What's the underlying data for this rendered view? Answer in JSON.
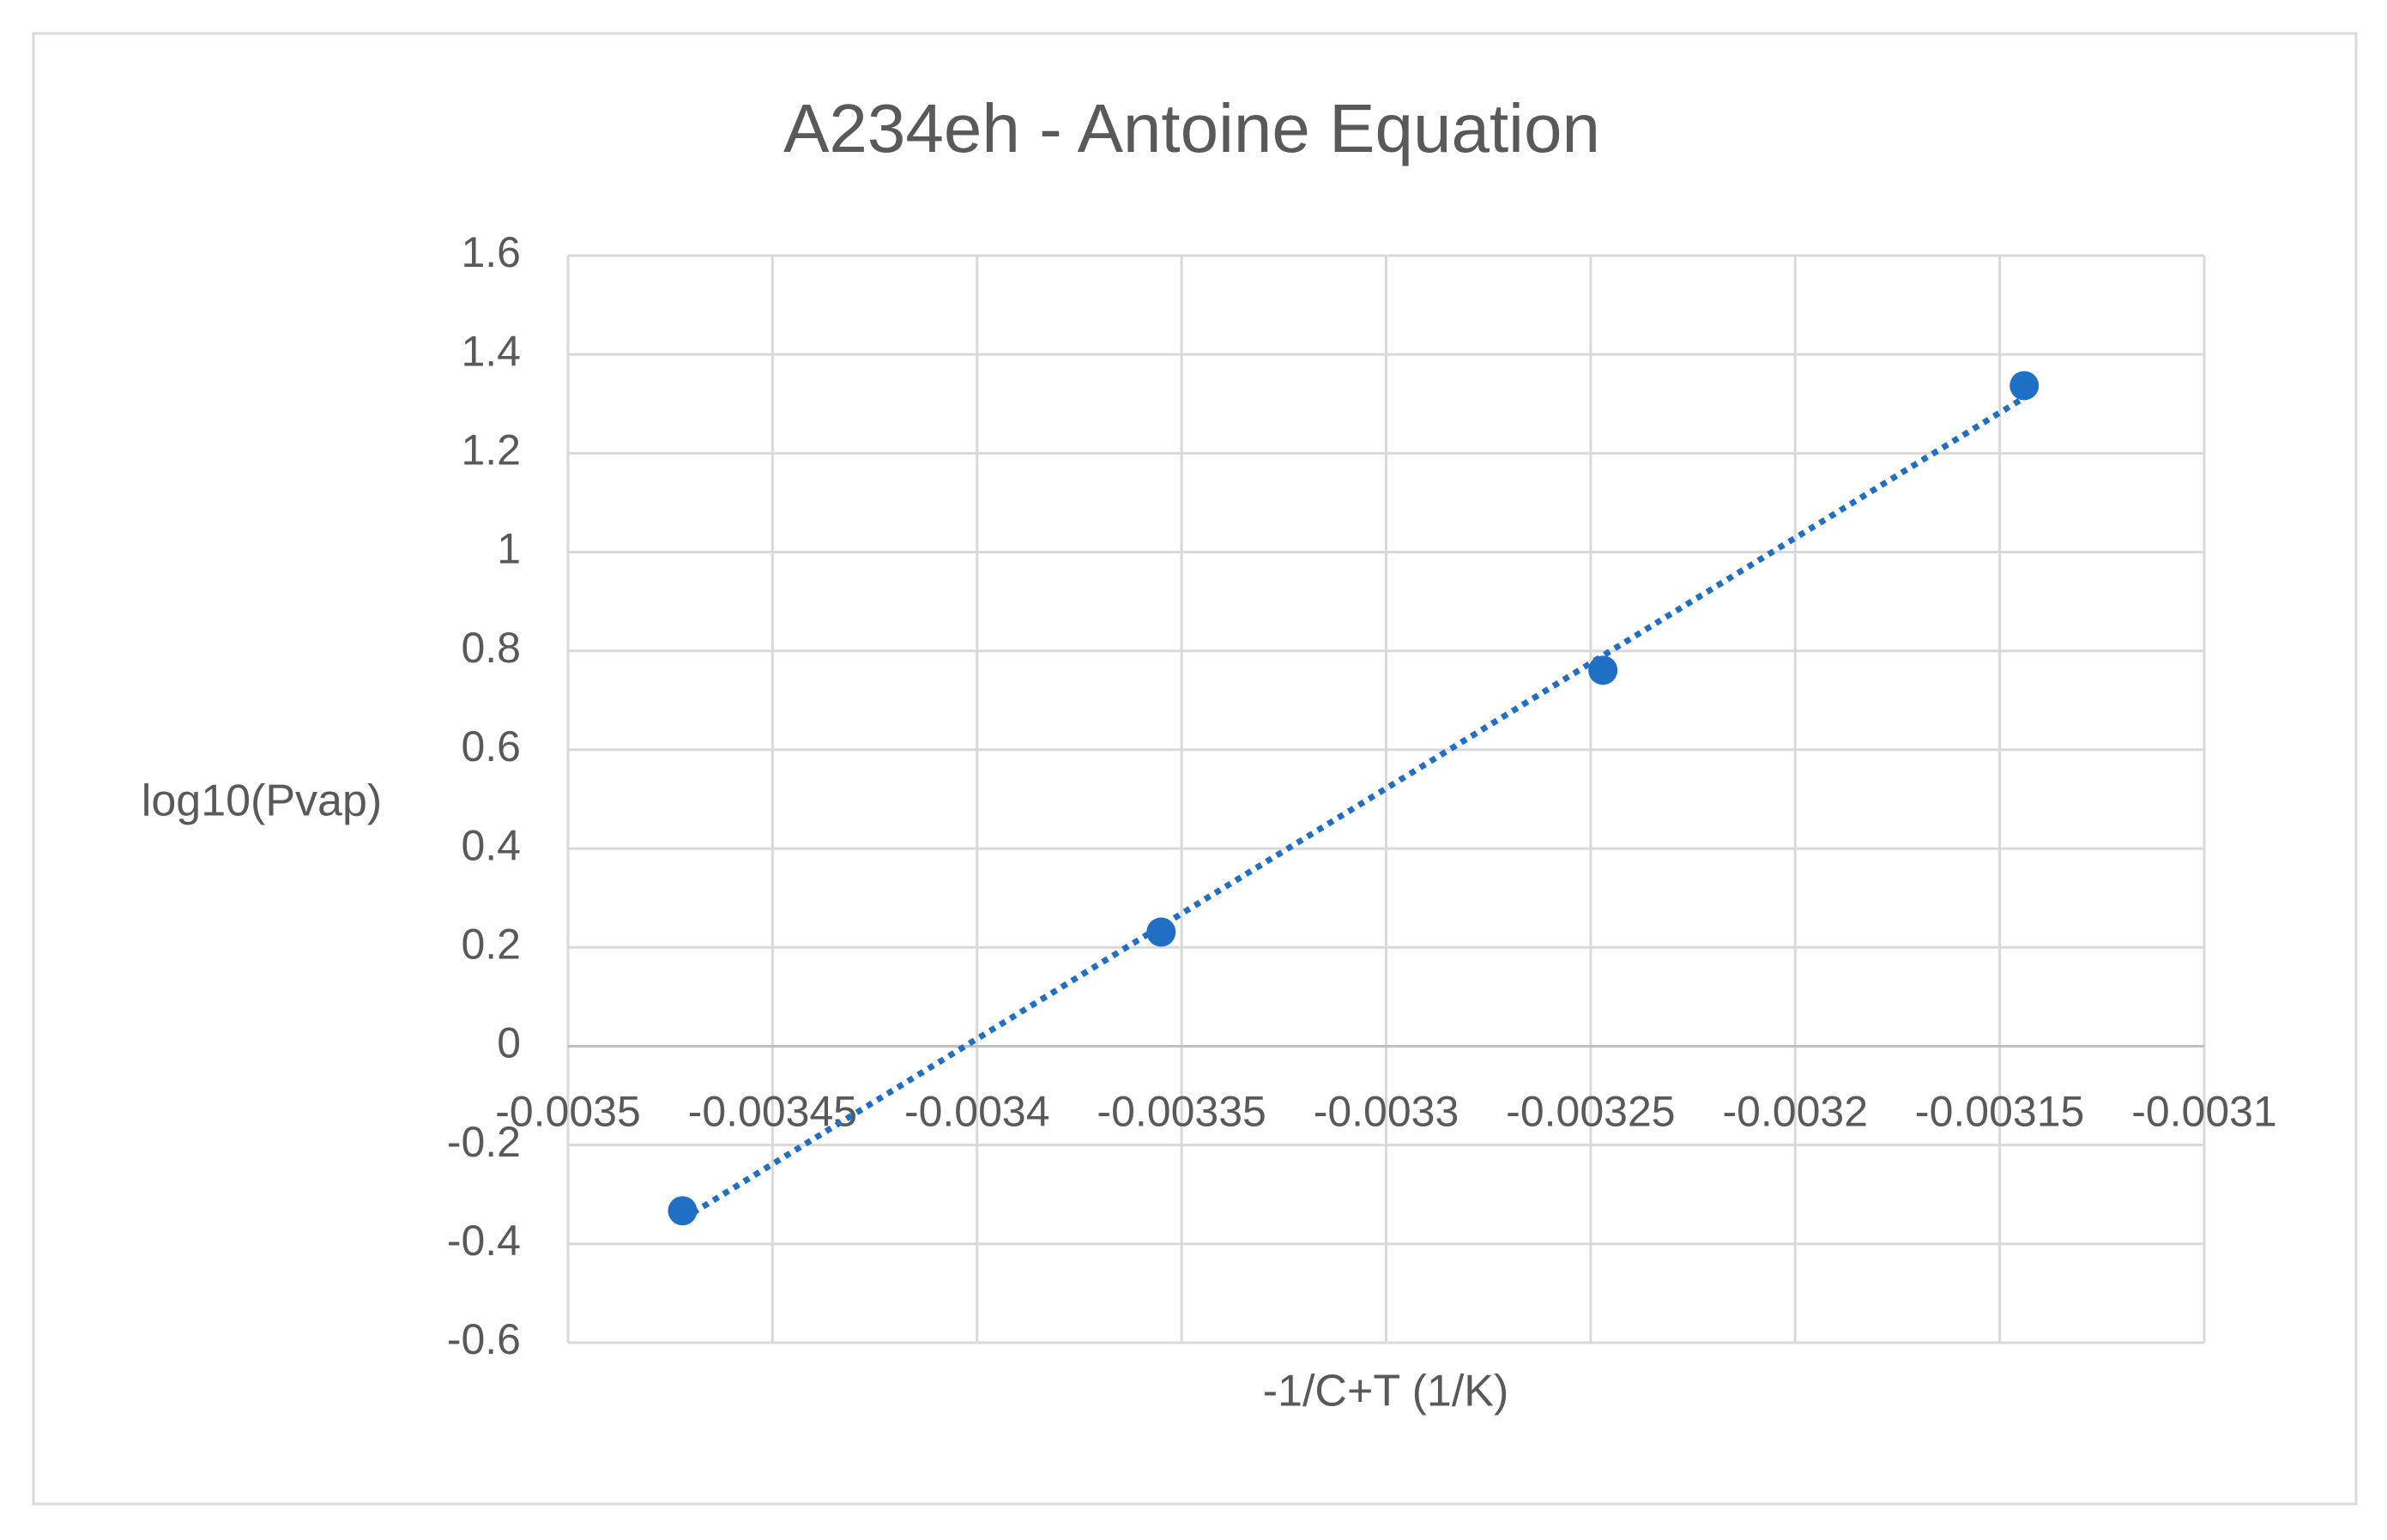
{
  "chart_data": {
    "type": "scatter",
    "title": "A234eh - Antoine Equation",
    "x_label": "-1/C+T (1/K)",
    "y_label": "log10(Pvap)",
    "series": [
      {
        "name": "log10(Pvap)",
        "color": "#1f6fc5",
        "x": [
          -0.003472,
          -0.003355,
          -0.003247,
          -0.003144
        ],
        "values": [
          -0.333,
          0.231,
          0.761,
          1.337
        ]
      }
    ],
    "trendline": "linear",
    "xlim": [
      -0.0035,
      -0.0031
    ],
    "xticks": [
      -0.0035,
      -0.00345,
      -0.0034,
      -0.00335,
      -0.0033,
      -0.00325,
      -0.0032,
      -0.00315,
      -0.0031
    ],
    "ylim": [
      -0.6,
      1.6
    ],
    "yticks": [
      -0.6,
      -0.4,
      -0.2,
      0,
      0.2,
      0.4,
      0.6,
      0.8,
      1,
      1.2,
      1.4,
      1.6
    ],
    "grid": true
  }
}
